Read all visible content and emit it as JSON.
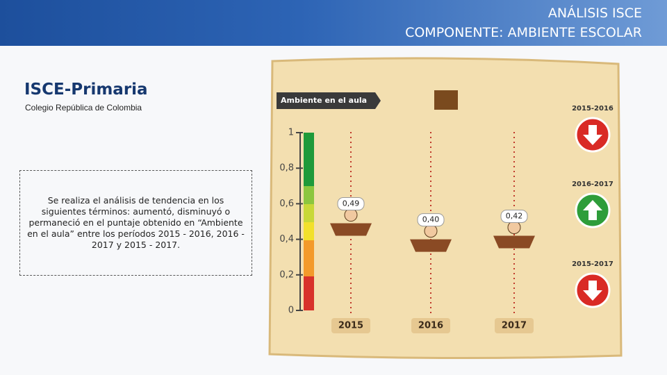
{
  "header": {
    "title": "ANÁLISIS ISCE",
    "subtitle": "COMPONENTE: AMBIENTE ESCOLAR"
  },
  "section": {
    "title": "ISCE-Primaria",
    "school": "Colegio República de Colombia"
  },
  "description": "Se realiza el análisis de tendencia en los siguientes términos: aumentó, disminuyó o permaneció en el puntaje obtenido en “Ambiente en el aula” entre los períodos 2015 - 2016, 2016 - 2017 y 2015 - 2017.",
  "chart_data": {
    "type": "scatter",
    "title": "Ambiente en el aula",
    "categories": [
      "2015",
      "2016",
      "2017"
    ],
    "values": [
      0.49,
      0.4,
      0.42
    ],
    "value_labels": [
      "0,49",
      "0,40",
      "0,42"
    ],
    "color": "#8a4a24",
    "ylim": [
      0,
      1
    ],
    "yticks": [
      0,
      {
        "value": 0.2,
        "label": "0,2"
      },
      {
        "value": 0.4,
        "label": "0,4"
      },
      {
        "value": 0.6,
        "label": "0,6"
      },
      {
        "value": 0.8,
        "label": "0,8"
      },
      1
    ],
    "trends": [
      {
        "period": "2015-2016",
        "direction": "down"
      },
      {
        "period": "2016-2017",
        "direction": "up"
      },
      {
        "period": "2015-2017",
        "direction": "down"
      }
    ]
  }
}
